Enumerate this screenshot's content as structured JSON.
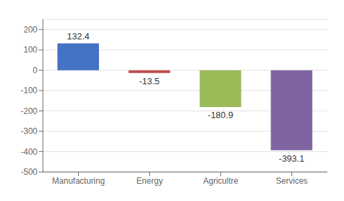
{
  "chart_data": {
    "type": "bar",
    "categories": [
      "Manufacturing",
      "Energy",
      "Agricultre",
      "Services"
    ],
    "values": [
      132.4,
      -13.5,
      -180.9,
      -393.1
    ],
    "colors": [
      "#4472C4",
      "#C0504D",
      "#9BBB59",
      "#8064A2"
    ],
    "ylim": [
      -500,
      250
    ],
    "yticks": [
      -500,
      -400,
      -300,
      -200,
      -100,
      0,
      100,
      200
    ],
    "grid": true,
    "data_labels": true
  }
}
